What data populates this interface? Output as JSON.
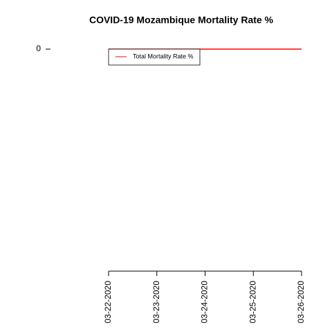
{
  "chart_data": {
    "type": "line",
    "title": "COVID-19 Mozambique Mortality Rate %",
    "categories": [
      "03-22-2020",
      "03-23-2020",
      "03-24-2020",
      "03-25-2020",
      "03-26-2020"
    ],
    "series": [
      {
        "name": "Total Mortality Rate %",
        "color": "#ff0000",
        "values": [
          0,
          0,
          0,
          0,
          0
        ]
      }
    ],
    "ylim": [
      -1,
      0
    ],
    "yticks": [
      0
    ],
    "grid": false,
    "legend": "top-left"
  }
}
